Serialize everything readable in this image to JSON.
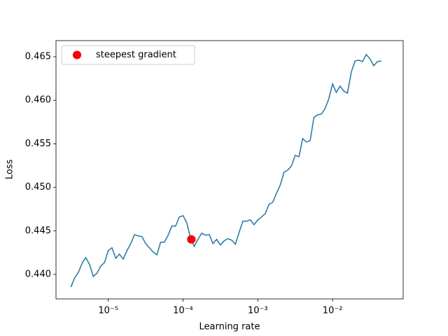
{
  "chart_data": {
    "type": "line",
    "xlabel": "Learning rate",
    "ylabel": "Loss",
    "xscale": "log",
    "legend": "upper left",
    "x": [
      3.16e-06,
      3.55e-06,
      3.98e-06,
      4.47e-06,
      5.01e-06,
      5.62e-06,
      6.31e-06,
      7.08e-06,
      7.94e-06,
      8.91e-06,
      1e-05,
      1.12e-05,
      1.26e-05,
      1.41e-05,
      1.58e-05,
      1.78e-05,
      2e-05,
      2.24e-05,
      2.51e-05,
      2.82e-05,
      3.16e-05,
      3.55e-05,
      3.98e-05,
      4.47e-05,
      5.01e-05,
      5.62e-05,
      6.31e-05,
      7.08e-05,
      7.94e-05,
      8.91e-05,
      0.0001,
      0.000112,
      0.000126,
      0.000141,
      0.000158,
      0.000178,
      0.0002,
      0.000224,
      0.000251,
      0.000282,
      0.000316,
      0.000355,
      0.000398,
      0.000447,
      0.000501,
      0.000562,
      0.000631,
      0.000708,
      0.000794,
      0.000891,
      0.001,
      0.00112,
      0.00126,
      0.00141,
      0.00158,
      0.00178,
      0.002,
      0.00224,
      0.00251,
      0.00282,
      0.00316,
      0.00355,
      0.00398,
      0.00447,
      0.00501,
      0.00562,
      0.00631,
      0.00708,
      0.00794,
      0.00891,
      0.01,
      0.0112,
      0.0126,
      0.0141,
      0.0158,
      0.0178,
      0.02,
      0.0224,
      0.0251,
      0.0282,
      0.0316,
      0.0355,
      0.0398,
      0.0447
    ],
    "series": [
      {
        "color": "#1f77b4",
        "values": [
          0.43855,
          0.4396,
          0.44024,
          0.44129,
          0.44193,
          0.44113,
          0.43976,
          0.44016,
          0.44096,
          0.44137,
          0.44273,
          0.44306,
          0.44185,
          0.44233,
          0.44177,
          0.44273,
          0.44354,
          0.44458,
          0.44442,
          0.44434,
          0.44354,
          0.44306,
          0.44257,
          0.44225,
          0.4437,
          0.4437,
          0.4445,
          0.44555,
          0.44555,
          0.44659,
          0.44675,
          0.44595,
          0.44418,
          0.44322,
          0.44402,
          0.44474,
          0.4445,
          0.44458,
          0.44354,
          0.44402,
          0.44338,
          0.44386,
          0.4441,
          0.44394,
          0.44346,
          0.44482,
          0.44611,
          0.44611,
          0.44627,
          0.44571,
          0.44627,
          0.44659,
          0.44699,
          0.44804,
          0.44828,
          0.44933,
          0.45029,
          0.45174,
          0.45198,
          0.45246,
          0.45367,
          0.45351,
          0.4556,
          0.4552,
          0.45536,
          0.45801,
          0.45833,
          0.45841,
          0.45905,
          0.46018,
          0.46187,
          0.4609,
          0.46163,
          0.46106,
          0.46082,
          0.46324,
          0.46452,
          0.4646,
          0.46444,
          0.46525,
          0.46476,
          0.46396,
          0.46444,
          0.46452
        ]
      },
      {
        "name": "steepest gradient",
        "type": "scatter",
        "color": "#ff0000",
        "x": [
          0.000129
        ],
        "values": [
          0.44402
        ]
      }
    ],
    "xlim": [
      2e-06,
      0.088
    ],
    "ylim": [
      0.43719,
      0.46685
    ],
    "xticks": [
      {
        "value": 1e-05,
        "label": "10⁻⁵"
      },
      {
        "value": 0.0001,
        "label": "10⁻⁴"
      },
      {
        "value": 0.001,
        "label": "10⁻³"
      },
      {
        "value": 0.01,
        "label": "10⁻²"
      }
    ],
    "yticks": [
      {
        "value": 0.44,
        "label": "0.440"
      },
      {
        "value": 0.445,
        "label": "0.445"
      },
      {
        "value": 0.45,
        "label": "0.450"
      },
      {
        "value": 0.455,
        "label": "0.455"
      },
      {
        "value": 0.46,
        "label": "0.460"
      },
      {
        "value": 0.465,
        "label": "0.465"
      }
    ]
  }
}
